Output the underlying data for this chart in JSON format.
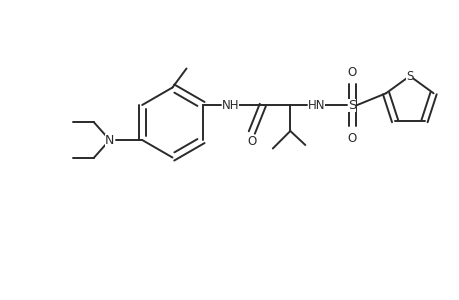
{
  "background_color": "#ffffff",
  "line_color": "#2a2a2a",
  "line_width": 1.4,
  "font_size": 8.5,
  "figsize": [
    4.6,
    3.0
  ],
  "dpi": 100,
  "xlim": [
    0,
    9.2
  ],
  "ylim": [
    0,
    6.0
  ]
}
